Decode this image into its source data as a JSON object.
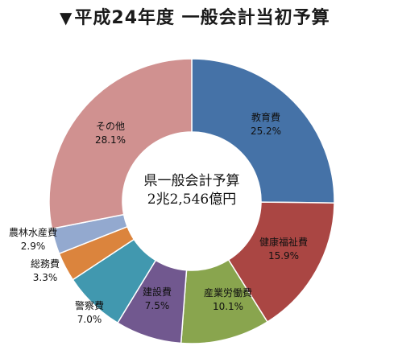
{
  "title_marker": "▼",
  "title": "平成24年度 一般会計当初予算",
  "chart_data": {
    "type": "pie",
    "variant": "donut",
    "center_text": [
      "県一般会計予算",
      "2兆2,546億円"
    ],
    "slices": [
      {
        "name": "教育費",
        "value_label": "25.2%",
        "value": 25.2,
        "color": "#4572a7"
      },
      {
        "name": "健康福祉費",
        "value_label": "15.9%",
        "value": 15.9,
        "color": "#aa4643"
      },
      {
        "name": "産業労働費",
        "value_label": "10.1%",
        "value": 10.1,
        "color": "#89a54e"
      },
      {
        "name": "建設費",
        "value_label": "7.5%",
        "value": 7.5,
        "color": "#71588f"
      },
      {
        "name": "警察費",
        "value_label": "7.0%",
        "value": 7.0,
        "color": "#4198af"
      },
      {
        "name": "総務費",
        "value_label": "3.3%",
        "value": 3.3,
        "color": "#db843d"
      },
      {
        "name": "農林水産費",
        "value_label": "2.9%",
        "value": 2.9,
        "color": "#93a9cf"
      },
      {
        "name": "その他",
        "value_label": "28.1%",
        "value": 28.1,
        "color": "#d09190"
      }
    ],
    "start_angle_deg": 0,
    "direction": "clockwise"
  }
}
